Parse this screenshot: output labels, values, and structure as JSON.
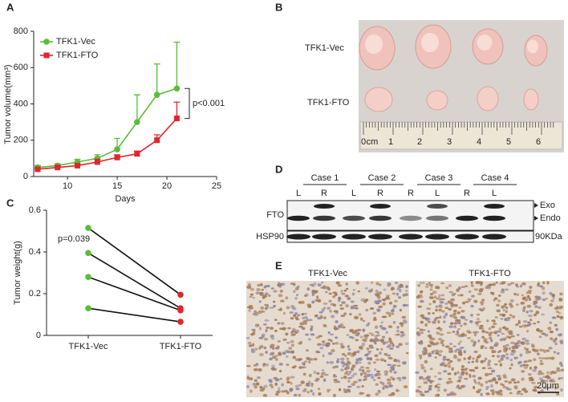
{
  "panel_labels": [
    "A",
    "B",
    "C",
    "D",
    "E"
  ],
  "chart_data": [
    {
      "type": "line",
      "xlabel": "Days",
      "ylabel": "Tumor volume(mm³)",
      "x": [
        7,
        9,
        11,
        13,
        15,
        17,
        19,
        21
      ],
      "xlim": [
        6.6,
        25
      ],
      "xticks": [
        10,
        15,
        20,
        25
      ],
      "ylim": [
        0,
        800
      ],
      "yticks": [
        0,
        200,
        400,
        600,
        800
      ],
      "series": [
        {
          "name": "TFK1-Vec",
          "color": "#5dbb3a",
          "marker": "circle",
          "values": [
            50,
            60,
            80,
            100,
            150,
            300,
            450,
            485
          ],
          "errors": [
            10,
            10,
            15,
            20,
            60,
            150,
            170,
            255
          ]
        },
        {
          "name": "TFK1-FTO",
          "color": "#e0262c",
          "marker": "square",
          "values": [
            40,
            50,
            60,
            80,
            105,
            125,
            200,
            320
          ],
          "errors": [
            5,
            8,
            10,
            15,
            15,
            15,
            30,
            90
          ]
        }
      ],
      "annotation": "p<0.001"
    },
    {
      "type": "paired",
      "ylabel": "Tumor weight(g)",
      "categories": [
        "TFK1-Vec",
        "TFK1-FTO"
      ],
      "point_colors": [
        "#5dbb3a",
        "#e0262c"
      ],
      "ylim": [
        0,
        0.6
      ],
      "yticks": [
        0,
        0.2,
        0.4,
        0.6
      ],
      "series": [
        {
          "values": [
            0.515,
            0.195
          ]
        },
        {
          "values": [
            0.395,
            0.13
          ]
        },
        {
          "values": [
            0.28,
            0.12
          ]
        },
        {
          "values": [
            0.13,
            0.065
          ]
        }
      ],
      "annotation": "p=0.039"
    }
  ],
  "photo": {
    "row_labels": [
      "TFK1-Vec",
      "TFK1-FTO"
    ],
    "ruler_labels": [
      "0",
      "cm",
      "1",
      "2",
      "3",
      "4",
      "5",
      "6"
    ]
  },
  "blot": {
    "cases": [
      "Case 1",
      "Case 2",
      "Case 3",
      "Case 4"
    ],
    "lanes": [
      "L",
      "R",
      "L",
      "R",
      "R",
      "L",
      "R",
      "L"
    ],
    "rows": [
      "FTO",
      "HSP90"
    ],
    "band_labels": [
      "Exo",
      "Endo"
    ],
    "size_label": "90KDa"
  },
  "ihc": {
    "labels": [
      "TFK1-Vec",
      "TFK1-FTO"
    ],
    "scale": "20μm"
  }
}
